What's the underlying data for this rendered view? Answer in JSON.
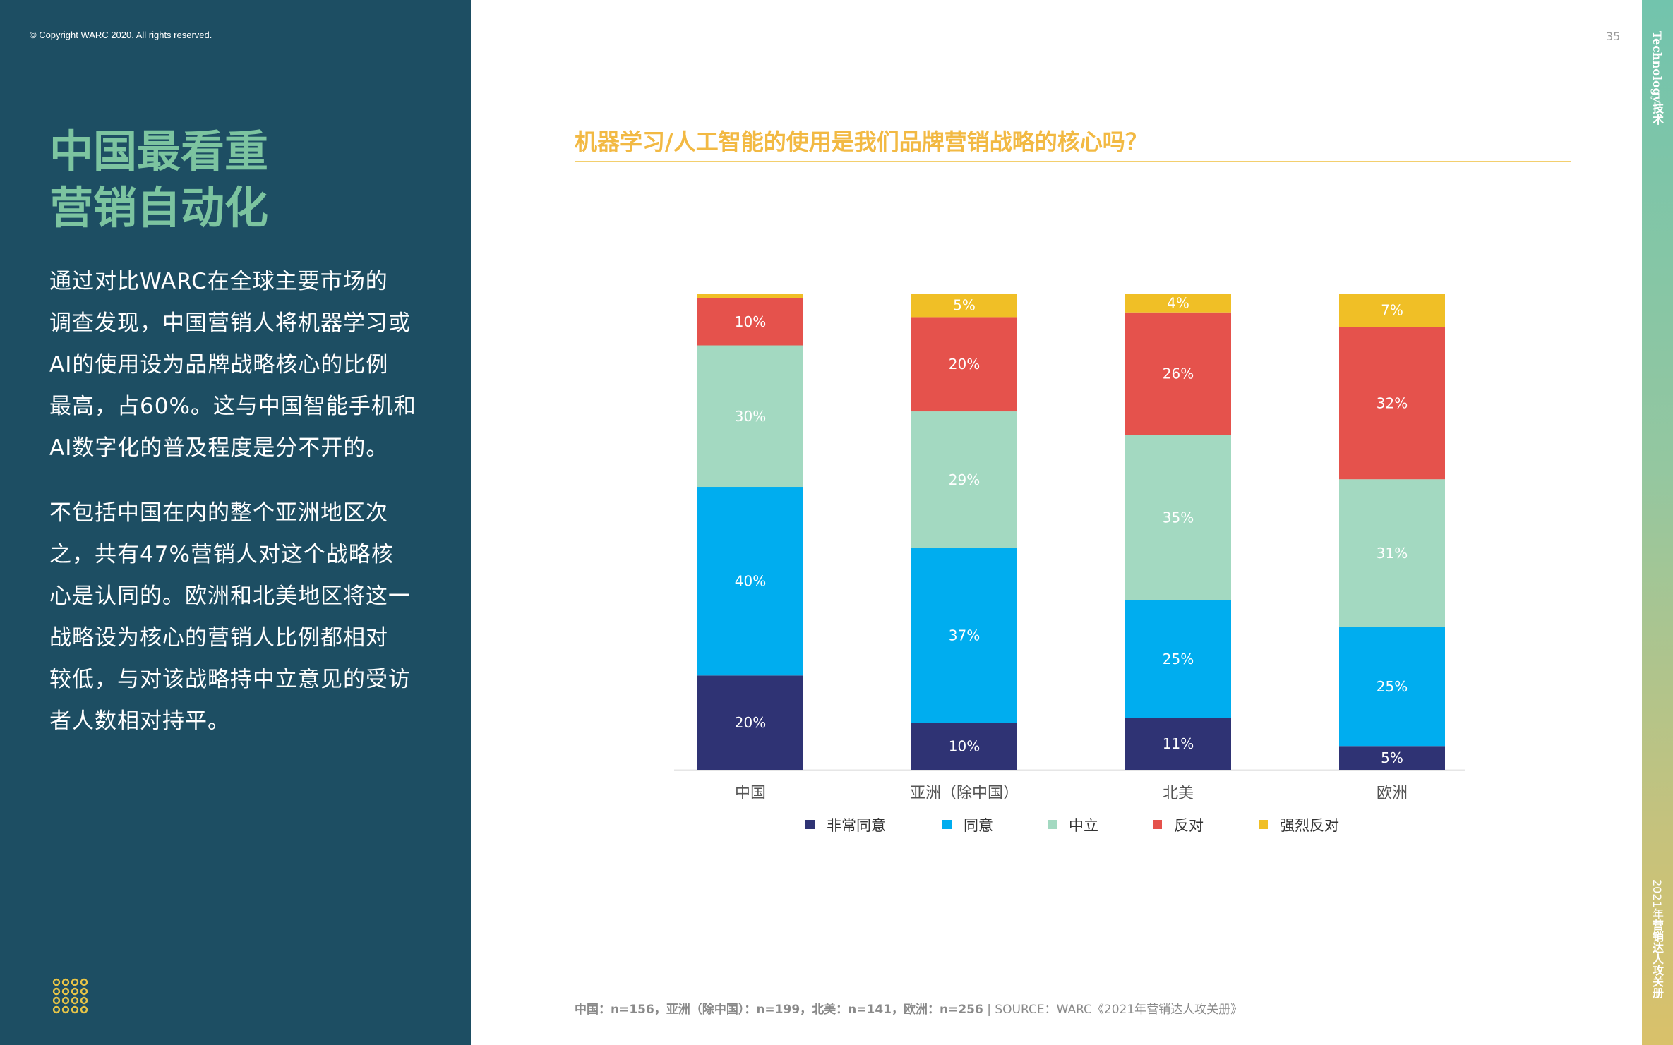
{
  "copyright": "© Copyright WARC 2020. All rights reserved.",
  "page_number": "35",
  "sidebar_top": "Technology技术",
  "sidebar_bottom_year": "2021年",
  "sidebar_bottom_title": "营销达人攻关册",
  "heading": {
    "line1": "中国最看重",
    "line2": "营销自动化"
  },
  "paragraph1": [
    "通过对比WARC在全球主要市场的",
    "调查发现，中国营销人将机器学习或",
    "AI的使用设为品牌战略核心的比例",
    "最高，占60%。这与中国智能手机和",
    "AI数字化的普及程度是分不开的。"
  ],
  "paragraph2": [
    "不包括中国在内的整个亚洲地区次",
    "之，共有47%营销人对这个战略核",
    "心是认同的。欧洲和北美地区将这一",
    "战略设为核心的营销人比例都相对",
    "较低，与对该战略持中立意见的受访",
    "者人数相对持平。"
  ],
  "footnote": {
    "bold": "中国：n=156，亚洲（除中国）：n=199，北美：n=141，欧洲：n=256",
    "source": " | SOURCE：WARC《2021年营销达人攻关册》"
  },
  "colors": {
    "panel": "#1d4e63",
    "heading": "#7cc4a0",
    "title": "#f2b943"
  },
  "chart_data": {
    "type": "bar",
    "stacked": true,
    "normalized": true,
    "title": "机器学习/人工智能的使用是我们品牌营销战略的核心吗？",
    "categories": [
      "中国",
      "亚洲（除中国）",
      "北美",
      "欧洲"
    ],
    "series": [
      {
        "name": "非常同意",
        "color": "#2f3374",
        "values": [
          20,
          10,
          11,
          5
        ]
      },
      {
        "name": "同意",
        "color": "#00adef",
        "values": [
          40,
          37,
          25,
          25
        ]
      },
      {
        "name": "中立",
        "color": "#a3d9c1",
        "values": [
          30,
          29,
          35,
          31
        ]
      },
      {
        "name": "反对",
        "color": "#e5524c",
        "values": [
          10,
          20,
          26,
          32
        ]
      },
      {
        "name": "强烈反对",
        "color": "#f0bf26",
        "values": [
          1,
          5,
          4,
          7
        ]
      }
    ],
    "data_labels": [
      [
        "20%",
        "10%",
        "11%",
        "5%"
      ],
      [
        "40%",
        "37%",
        "25%",
        "25%"
      ],
      [
        "30%",
        "29%",
        "35%",
        "31%"
      ],
      [
        "10%",
        "20%",
        "26%",
        "32%"
      ],
      [
        "",
        "5%",
        "4%",
        "7%"
      ]
    ],
    "legend_position": "bottom",
    "grid": false
  }
}
